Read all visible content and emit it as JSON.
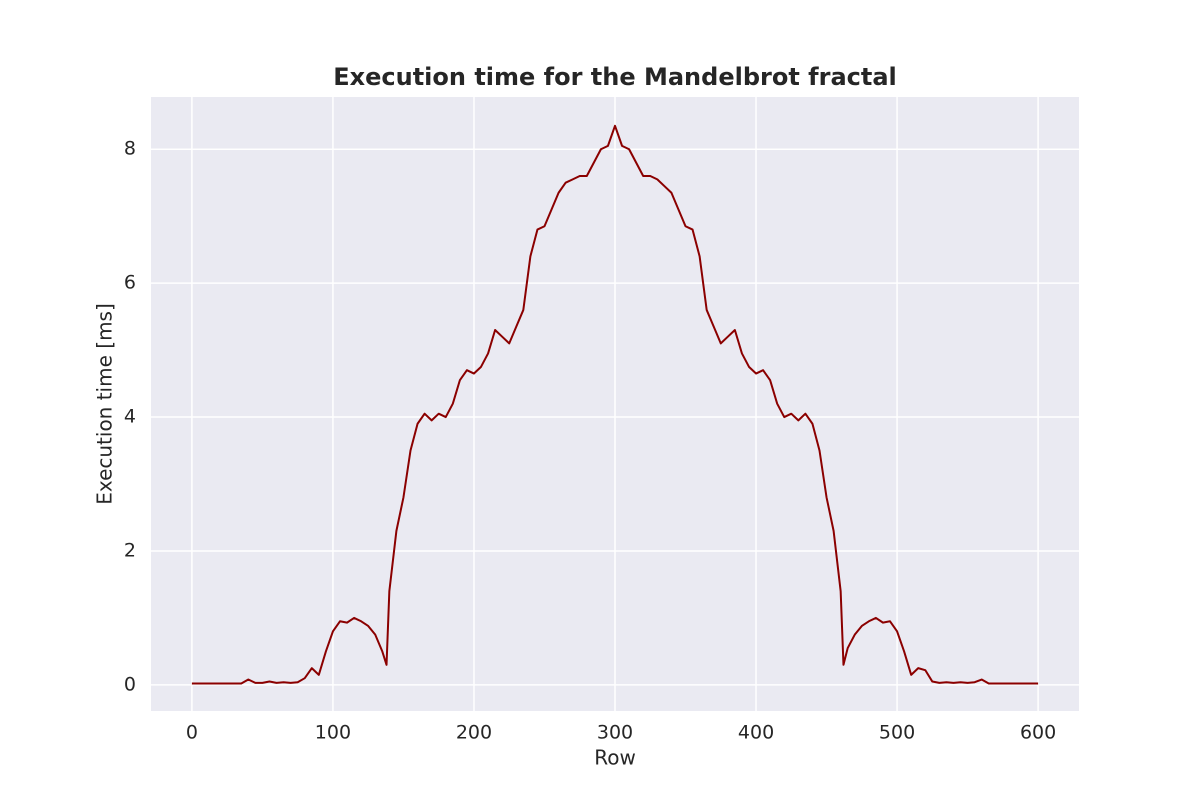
{
  "chart_data": {
    "type": "line",
    "title": "Execution time for the Mandelbrot fractal",
    "x_label": "Row",
    "y_label": "Execution time [ms]",
    "x": [
      0,
      5,
      10,
      15,
      20,
      25,
      30,
      35,
      40,
      45,
      50,
      55,
      60,
      65,
      70,
      75,
      80,
      85,
      90,
      95,
      100,
      105,
      110,
      115,
      120,
      125,
      130,
      135,
      138,
      140,
      145,
      150,
      155,
      160,
      165,
      170,
      175,
      180,
      185,
      190,
      195,
      200,
      205,
      210,
      215,
      220,
      225,
      230,
      235,
      240,
      245,
      250,
      255,
      260,
      265,
      270,
      275,
      280,
      285,
      290,
      295,
      300,
      305,
      310,
      315,
      320,
      325,
      330,
      335,
      340,
      345,
      350,
      355,
      360,
      365,
      370,
      375,
      380,
      385,
      390,
      395,
      400,
      405,
      410,
      415,
      420,
      425,
      430,
      435,
      440,
      445,
      450,
      455,
      460,
      462,
      465,
      470,
      475,
      480,
      485,
      490,
      495,
      500,
      505,
      510,
      515,
      520,
      525,
      530,
      535,
      540,
      545,
      550,
      555,
      560,
      565,
      570,
      575,
      580,
      585,
      590,
      595,
      600
    ],
    "series": [
      {
        "name": "Execution time",
        "color": "#8b0000",
        "values": [
          0.02,
          0.02,
          0.02,
          0.02,
          0.02,
          0.02,
          0.02,
          0.02,
          0.08,
          0.03,
          0.03,
          0.05,
          0.03,
          0.04,
          0.03,
          0.04,
          0.1,
          0.25,
          0.15,
          0.5,
          0.8,
          0.95,
          0.93,
          1.0,
          0.95,
          0.88,
          0.75,
          0.5,
          0.3,
          1.4,
          2.3,
          2.8,
          3.5,
          3.9,
          4.05,
          3.95,
          4.05,
          4.0,
          4.2,
          4.55,
          4.7,
          4.65,
          4.75,
          4.95,
          5.3,
          5.2,
          5.1,
          5.35,
          5.6,
          6.4,
          6.8,
          6.85,
          7.1,
          7.35,
          7.5,
          7.55,
          7.6,
          7.6,
          7.8,
          8.0,
          8.05,
          8.35,
          8.05,
          8.0,
          7.8,
          7.6,
          7.6,
          7.55,
          7.45,
          7.35,
          7.1,
          6.85,
          6.8,
          6.4,
          5.6,
          5.35,
          5.1,
          5.2,
          5.3,
          4.95,
          4.75,
          4.65,
          4.7,
          4.55,
          4.2,
          4.0,
          4.05,
          3.95,
          4.05,
          3.9,
          3.5,
          2.8,
          2.3,
          1.4,
          0.3,
          0.55,
          0.75,
          0.88,
          0.95,
          1.0,
          0.93,
          0.95,
          0.8,
          0.5,
          0.15,
          0.25,
          0.22,
          0.05,
          0.03,
          0.04,
          0.03,
          0.04,
          0.03,
          0.04,
          0.08,
          0.02,
          0.02,
          0.02,
          0.02,
          0.02,
          0.02,
          0.02,
          0.02
        ]
      }
    ],
    "xlim": [
      -29,
      629
    ],
    "ylim": [
      -0.39,
      8.78
    ],
    "xticks": [
      0,
      100,
      200,
      300,
      400,
      500,
      600
    ],
    "yticks": [
      0,
      2,
      4,
      6,
      8
    ],
    "grid": true,
    "background": "#eaeaf2"
  }
}
